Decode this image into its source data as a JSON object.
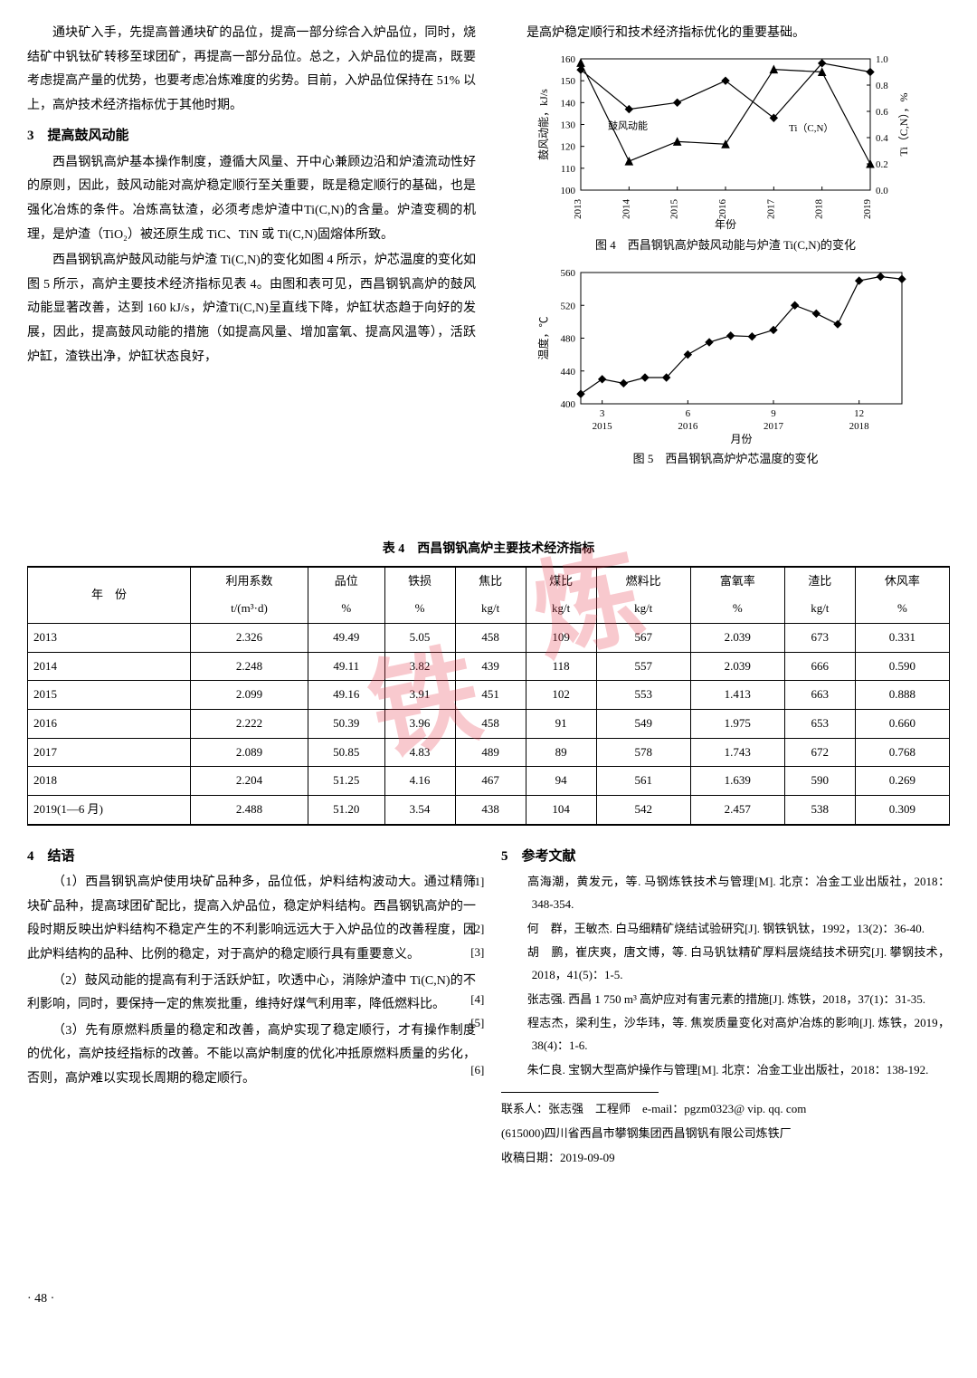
{
  "col1": {
    "para1": "通块矿入手，先提高普通块矿的品位，提高一部分综合入炉品位，同时，烧结矿中钒钛矿转移至球团矿，再提高一部分品位。总之，入炉品位的提高，既要考虑提高产量的优势，也要考虑冶炼难度的劣势。目前，入炉品位保持在 51% 以上，高炉技术经济指标优于其他时期。",
    "sec3_title": "3　提高鼓风动能",
    "para2": "西昌钢钒高炉基本操作制度，遵循大风量、开中心兼顾边沿和炉渣流动性好的原则，因此，鼓风动能对高炉稳定顺行至关重要，既是稳定顺行的基础，也是强化冶炼的条件。冶炼高钛渣，必须考虑炉渣中Ti(C,N)的含量。炉渣变稠的机理，是炉渣（TiO₂）被还原生成 TiC、TiN 或 Ti(C,N)固熔体所致。",
    "para3": "西昌钢钒高炉鼓风动能与炉渣 Ti(C,N)的变化如图 4 所示，炉芯温度的变化如图 5 所示，高炉主要技术经济指标见表 4。由图和表可见，西昌钢钒高炉的鼓风动能显著改善，达到 160 kJ/s，炉渣Ti(C,N)呈直线下降，炉缸状态趋于向好的发展，因此，提高鼓风动能的措施（如提高风量、增加富氧、提高风温等），活跃炉缸，渣铁出净，炉缸状态良好，"
  },
  "col2_top": "是高炉稳定顺行和技术经济指标优化的重要基础。",
  "fig4": {
    "caption": "图 4　西昌钢钒高炉鼓风动能与炉渣 Ti(C,N)的变化",
    "xlabel": "年份",
    "ylabel_left": "鼓风动能，kJ/s",
    "ylabel_right": "Ti（C,N），%",
    "x_ticks": [
      "2013",
      "2014",
      "2015",
      "2016",
      "2017",
      "2018",
      "2019"
    ],
    "y1_ticks": [
      100,
      110,
      120,
      130,
      140,
      150,
      160
    ],
    "y2_ticks": [
      0,
      0.2,
      0.4,
      0.6,
      0.8,
      1.0
    ],
    "series1_label": "鼓风动能",
    "series2_label": "Ti（C,N）",
    "series1_values": [
      155,
      137,
      140,
      150,
      133,
      158,
      154
    ],
    "series2_values": [
      0.97,
      0.22,
      0.37,
      0.35,
      0.92,
      0.9,
      0.2
    ],
    "line_color": "#000000",
    "marker_size": 4,
    "background_color": "#ffffff"
  },
  "fig5": {
    "caption": "图 5　西昌钢钒高炉炉芯温度的变化",
    "xlabel": "月份",
    "ylabel": "温度，℃",
    "x_major": [
      "3",
      "6",
      "9",
      "12"
    ],
    "x_years": [
      "2015",
      "2016",
      "2017",
      "2018"
    ],
    "y_ticks": [
      400,
      440,
      480,
      520,
      560
    ],
    "values": [
      412,
      430,
      425,
      432,
      432,
      460,
      475,
      483,
      482,
      490,
      520,
      510,
      497,
      550,
      555,
      552
    ],
    "line_color": "#000000",
    "marker_size": 4,
    "background_color": "#ffffff"
  },
  "table4": {
    "caption": "表 4　西昌钢钒高炉主要技术经济指标",
    "headers_row1": [
      "年　份",
      "利用系数",
      "品位",
      "铁损",
      "焦比",
      "煤比",
      "燃料比",
      "富氧率",
      "渣比",
      "休风率"
    ],
    "headers_row2": [
      "",
      "t/(m³·d)",
      "%",
      "%",
      "kg/t",
      "kg/t",
      "kg/t",
      "%",
      "kg/t",
      "%"
    ],
    "rows": [
      [
        "2013",
        "2.326",
        "49.49",
        "5.05",
        "458",
        "109",
        "567",
        "2.039",
        "673",
        "0.331"
      ],
      [
        "2014",
        "2.248",
        "49.11",
        "3.82",
        "439",
        "118",
        "557",
        "2.039",
        "666",
        "0.590"
      ],
      [
        "2015",
        "2.099",
        "49.16",
        "3.91",
        "451",
        "102",
        "553",
        "1.413",
        "663",
        "0.888"
      ],
      [
        "2016",
        "2.222",
        "50.39",
        "3.96",
        "458",
        "91",
        "549",
        "1.975",
        "653",
        "0.660"
      ],
      [
        "2017",
        "2.089",
        "50.85",
        "4.83",
        "489",
        "89",
        "578",
        "1.743",
        "672",
        "0.768"
      ],
      [
        "2018",
        "2.204",
        "51.25",
        "4.16",
        "467",
        "94",
        "561",
        "1.639",
        "590",
        "0.269"
      ],
      [
        "2019(1—6 月)",
        "2.488",
        "51.20",
        "3.54",
        "438",
        "104",
        "542",
        "2.457",
        "538",
        "0.309"
      ]
    ]
  },
  "sec4": {
    "title": "4　结语",
    "p1": "（1）西昌钢钒高炉使用块矿品种多，品位低，炉料结构波动大。通过精筛块矿品种，提高球团矿配比，提高入炉品位，稳定炉料结构。西昌钢钒高炉的一段时期反映出炉料结构不稳定产生的不利影响远远大于入炉品位的改善程度，因此炉料结构的品种、比例的稳定，对于高炉的稳定顺行具有重要意义。",
    "p2": "（2）鼓风动能的提高有利于活跃炉缸，吹透中心，消除炉渣中 Ti(C,N)的不利影响，同时，要保持一定的焦炭批重，维持好煤气利用率，降低燃料比。",
    "p3": "（3）先有原燃料质量的稳定和改善，高炉实现了稳定顺行，才有操作制度的优化，高炉技经指标的改善。不能以高炉制度的优化冲抵原燃料质量的劣化，否则，高炉难以实现长周期的稳定顺行。"
  },
  "sec5": {
    "title": "5　参考文献",
    "refs": [
      "高海潮，黄发元，等. 马钢炼铁技术与管理[M]. 北京：冶金工业出版社，2018：348-354.",
      "何　群，王敏杰. 白马细精矿烧结试验研究[J]. 钢铁钒钛，1992，13(2)：36-40.",
      "胡　鹏，崔庆爽，唐文博，等. 白马钒钛精矿厚料层烧结技术研究[J]. 攀钢技术，2018，41(5)：1-5.",
      "张志强. 西昌 1 750 m³ 高炉应对有害元素的措施[J]. 炼铁，2018，37(1)：31-35.",
      "程志杰，梁利生，沙华玮，等. 焦炭质量变化对高炉冶炼的影响[J]. 炼铁，2019，38(4)：1-6.",
      "朱仁良. 宝钢大型高炉操作与管理[M]. 北京：冶金工业出版社，2018：138-192."
    ]
  },
  "contact": {
    "line1": "联系人：张志强　工程师　e-mail：pgzm0323@ vip. qq. com",
    "line2": "(615000)四川省西昌市攀钢集团西昌钢钒有限公司炼铁厂",
    "line3": "收稿日期：2019-09-09"
  },
  "pagefoot": "· 48 ·"
}
